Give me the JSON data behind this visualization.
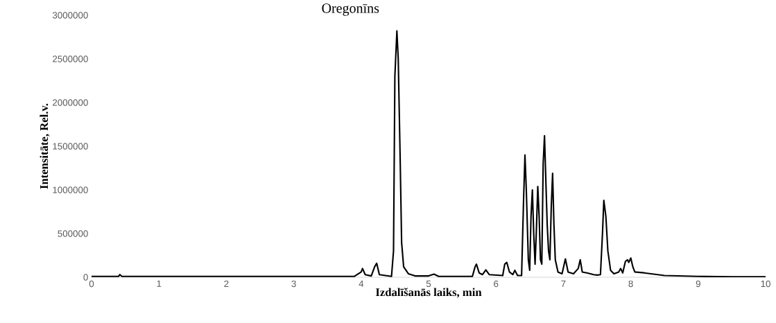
{
  "chart_data": {
    "type": "line",
    "title": "Oregonīns",
    "xlabel": "Izdalīšanās laiks, min",
    "ylabel": "Intensitāte, Rel.v.",
    "color": "#000000",
    "x": [
      0,
      0.4,
      0.42,
      0.45,
      3.9,
      4.0,
      4.02,
      4.06,
      4.15,
      4.2,
      4.23,
      4.27,
      4.45,
      4.48,
      4.5,
      4.53,
      4.55,
      4.58,
      4.6,
      4.63,
      4.7,
      4.8,
      5.0,
      5.08,
      5.15,
      5.65,
      5.69,
      5.71,
      5.75,
      5.8,
      5.85,
      5.9,
      6.1,
      6.13,
      6.16,
      6.2,
      6.25,
      6.28,
      6.32,
      6.38,
      6.41,
      6.43,
      6.45,
      6.48,
      6.5,
      6.52,
      6.54,
      6.56,
      6.58,
      6.6,
      6.62,
      6.64,
      6.66,
      6.68,
      6.7,
      6.72,
      6.74,
      6.76,
      6.78,
      6.8,
      6.82,
      6.84,
      6.86,
      6.88,
      6.92,
      6.98,
      7.03,
      7.07,
      7.15,
      7.22,
      7.25,
      7.28,
      7.35,
      7.45,
      7.5,
      7.55,
      7.58,
      7.6,
      7.63,
      7.66,
      7.7,
      7.75,
      7.82,
      7.85,
      7.88,
      7.92,
      7.95,
      7.97,
      8.0,
      8.03,
      8.06,
      8.2,
      8.3,
      8.5,
      9.0,
      9.5,
      10
    ],
    "values": [
      10000,
      10000,
      30000,
      10000,
      10000,
      60000,
      100000,
      30000,
      15000,
      120000,
      160000,
      30000,
      10000,
      300000,
      2300000,
      2820000,
      2500000,
      1300000,
      400000,
      120000,
      40000,
      15000,
      15000,
      35000,
      10000,
      10000,
      120000,
      150000,
      50000,
      30000,
      85000,
      30000,
      20000,
      150000,
      170000,
      60000,
      30000,
      80000,
      20000,
      20000,
      900000,
      1400000,
      1000000,
      200000,
      80000,
      700000,
      1000000,
      500000,
      150000,
      550000,
      1040000,
      700000,
      200000,
      150000,
      1300000,
      1620000,
      1100000,
      600000,
      300000,
      200000,
      800000,
      1190000,
      600000,
      200000,
      60000,
      40000,
      210000,
      60000,
      40000,
      100000,
      200000,
      60000,
      50000,
      30000,
      25000,
      30000,
      500000,
      880000,
      700000,
      300000,
      80000,
      40000,
      60000,
      100000,
      50000,
      180000,
      200000,
      170000,
      220000,
      120000,
      60000,
      50000,
      40000,
      20000,
      10000,
      5000,
      5000
    ],
    "xlim": [
      0,
      10
    ],
    "ylim": [
      0,
      3000000
    ],
    "xticks": [
      0,
      1,
      2,
      3,
      4,
      5,
      6,
      7,
      8,
      9,
      10
    ],
    "yticks": [
      0,
      500000,
      1000000,
      1500000,
      2000000,
      2500000,
      3000000
    ]
  }
}
